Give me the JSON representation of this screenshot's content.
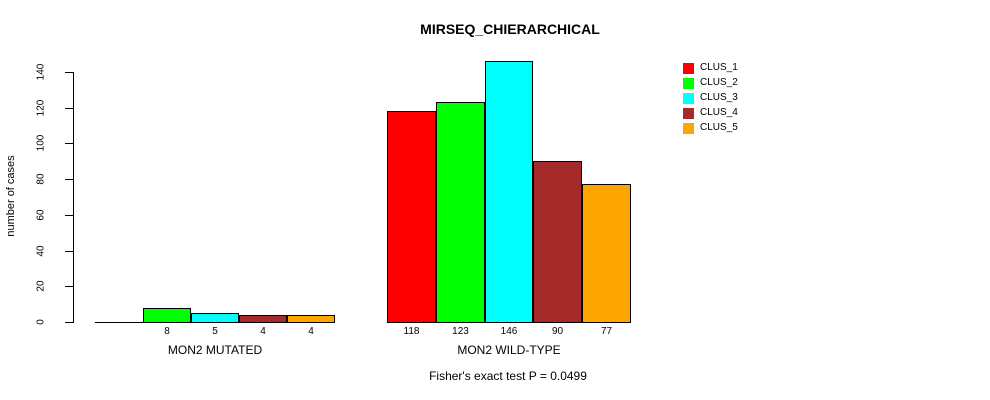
{
  "title": "MIRSEQ_CHIERARCHICAL",
  "subtitle": "Fisher's exact test P = 0.0499",
  "chart_data": {
    "type": "bar",
    "grouped": true,
    "title": "MIRSEQ_CHIERARCHICAL",
    "subtitle": "Fisher's exact test P = 0.0499",
    "categories": [
      "MON2 MUTATED",
      "MON2 WILD-TYPE"
    ],
    "series": [
      {
        "name": "CLUS_1",
        "color": "#FF0000",
        "values": [
          0,
          118
        ]
      },
      {
        "name": "CLUS_2",
        "color": "#00FF00",
        "values": [
          8,
          123
        ]
      },
      {
        "name": "CLUS_3",
        "color": "#00FFFF",
        "values": [
          5,
          146
        ]
      },
      {
        "name": "CLUS_4",
        "color": "#A52A2A",
        "values": [
          4,
          90
        ]
      },
      {
        "name": "CLUS_5",
        "color": "#FFA500",
        "values": [
          4,
          77
        ]
      }
    ],
    "bar_value_labels": [
      [
        "",
        "8",
        "5",
        "4",
        "4"
      ],
      [
        "118",
        "123",
        "146",
        "90",
        "77"
      ]
    ],
    "xlabel": "",
    "ylabel": "number of cases",
    "yticks": [
      0,
      20,
      40,
      60,
      80,
      100,
      120,
      140
    ],
    "ylim": [
      0,
      140
    ],
    "grid": false,
    "legend_position": "top-right",
    "bar_border_color": "#000000",
    "background_color": "#FFFFFF"
  }
}
